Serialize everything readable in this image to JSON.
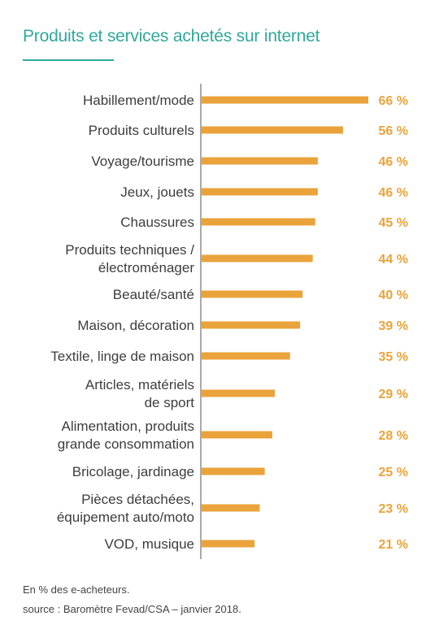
{
  "title": "Produits et services achetés sur internet",
  "footnote": "En % des e-acheteurs.",
  "source": "source : Baromètre Fevad/CSA – janvier 2018.",
  "colors": {
    "title": "#2fa89b",
    "bar": "#eaa33b",
    "value": "#eaa33b",
    "axis": "#555555",
    "label": "#3d3d3d"
  },
  "chart_data": {
    "type": "bar",
    "orientation": "horizontal",
    "title": "Produits et services achetés sur internet",
    "categories": [
      [
        "Habillement/mode"
      ],
      [
        "Produits culturels"
      ],
      [
        "Voyage/tourisme"
      ],
      [
        "Jeux, jouets"
      ],
      [
        "Chaussures"
      ],
      [
        "Produits techniques /",
        "électroménager"
      ],
      [
        "Beauté/santé"
      ],
      [
        "Maison, décoration"
      ],
      [
        "Textile, linge de maison"
      ],
      [
        "Articles, matériels",
        "de sport"
      ],
      [
        "Alimentation, produits",
        "grande consommation"
      ],
      [
        "Bricolage, jardinage"
      ],
      [
        "Pièces détachées,",
        "équipement auto/moto"
      ],
      [
        "VOD, musique"
      ]
    ],
    "values": [
      66,
      56,
      46,
      46,
      45,
      44,
      40,
      39,
      35,
      29,
      28,
      25,
      23,
      21
    ],
    "value_labels": [
      "66 %",
      "56 %",
      "46 %",
      "46 %",
      "45 %",
      "44 %",
      "40 %",
      "39 %",
      "35 %",
      "29 %",
      "28 %",
      "25 %",
      "23 %",
      "21 %"
    ],
    "xlim": [
      0,
      66
    ],
    "grid": false,
    "legend": "none"
  }
}
